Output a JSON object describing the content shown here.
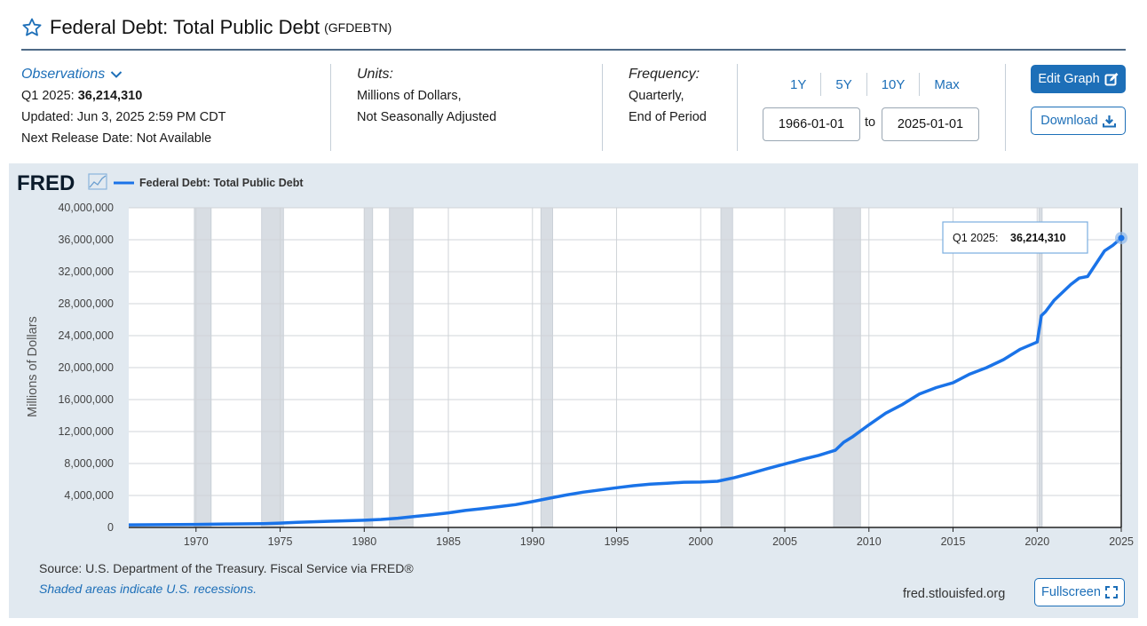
{
  "header": {
    "title": "Federal Debt: Total Public Debt",
    "series_id": "(GFDEBTN)"
  },
  "observations": {
    "link_label": "Observations",
    "latest_period": "Q1 2025:",
    "latest_value": "36,214,310",
    "updated": "Updated: Jun 3, 2025 2:59 PM CDT",
    "next_release": "Next Release Date: Not Available"
  },
  "units": {
    "label": "Units:",
    "line1": "Millions of Dollars,",
    "line2": "Not Seasonally Adjusted"
  },
  "frequency": {
    "label": "Frequency:",
    "line1": "Quarterly,",
    "line2": "End of Period"
  },
  "range": {
    "buttons": [
      "1Y",
      "5Y",
      "10Y",
      "Max"
    ],
    "start": "1966-01-01",
    "to_label": "to",
    "end": "2025-01-01"
  },
  "actions": {
    "edit_graph": "Edit Graph",
    "download": "Download",
    "fullscreen": "Fullscreen"
  },
  "footer": {
    "source": "Source: U.S. Department of the Treasury. Fiscal Service via FRED®",
    "shaded": "Shaded areas indicate U.S. recessions.",
    "site": "fred.stlouisfed.org"
  },
  "colors": {
    "accent": "#1d6fb8",
    "line": "#1a73e8",
    "panel": "#e1e9f0",
    "recession": "#d8dde3"
  },
  "chart_data": {
    "type": "line",
    "logo": "FRED",
    "legend": [
      "Federal Debt: Total Public Debt"
    ],
    "ylabel": "Millions of Dollars",
    "xlim": [
      1966,
      2025
    ],
    "ylim": [
      0,
      40000000
    ],
    "yticks": [
      0,
      4000000,
      8000000,
      12000000,
      16000000,
      20000000,
      24000000,
      28000000,
      32000000,
      36000000,
      40000000
    ],
    "ytick_labels": [
      "0",
      "4,000,000",
      "8,000,000",
      "12,000,000",
      "16,000,000",
      "20,000,000",
      "24,000,000",
      "28,000,000",
      "32,000,000",
      "36,000,000",
      "40,000,000"
    ],
    "xticks": [
      1970,
      1975,
      1980,
      1985,
      1990,
      1995,
      2000,
      2005,
      2010,
      2015,
      2020,
      2025
    ],
    "grid": true,
    "recessions": [
      [
        1969.9,
        1970.9
      ],
      [
        1973.9,
        1975.2
      ],
      [
        1980.0,
        1980.5
      ],
      [
        1981.5,
        1982.9
      ],
      [
        1990.5,
        1991.2
      ],
      [
        2001.2,
        2001.9
      ],
      [
        2007.9,
        2009.5
      ],
      [
        2020.1,
        2020.3
      ]
    ],
    "tooltip": {
      "label": "Q1 2025:",
      "value": "36,214,310"
    },
    "series": [
      {
        "name": "Federal Debt: Total Public Debt",
        "x": [
          1966,
          1968,
          1970,
          1972,
          1974,
          1975,
          1976,
          1978,
          1980,
          1981,
          1982,
          1983,
          1984,
          1985,
          1986,
          1987,
          1988,
          1989,
          1990,
          1991,
          1992,
          1993,
          1994,
          1995,
          1996,
          1997,
          1998,
          1999,
          2000,
          2001,
          2002,
          2003,
          2004,
          2005,
          2006,
          2007,
          2008,
          2008.5,
          2009,
          2010,
          2011,
          2012,
          2013,
          2014,
          2015,
          2016,
          2017,
          2018,
          2019,
          2020,
          2020.25,
          2020.5,
          2021,
          2022,
          2022.5,
          2023,
          2023.5,
          2024,
          2024.5,
          2025
        ],
        "y": [
          320000,
          350000,
          380000,
          430000,
          480000,
          540000,
          630000,
          780000,
          900000,
          1000000,
          1150000,
          1380000,
          1580000,
          1820000,
          2120000,
          2350000,
          2600000,
          2860000,
          3230000,
          3660000,
          4060000,
          4410000,
          4690000,
          4970000,
          5220000,
          5410000,
          5530000,
          5660000,
          5680000,
          5780000,
          6230000,
          6790000,
          7380000,
          7930000,
          8500000,
          9010000,
          9650000,
          10650000,
          11300000,
          12850000,
          14300000,
          15400000,
          16700000,
          17500000,
          18100000,
          19200000,
          20000000,
          21000000,
          22300000,
          23200000,
          26500000,
          27000000,
          28400000,
          30400000,
          31200000,
          31400000,
          33000000,
          34600000,
          35300000,
          36214310
        ]
      }
    ]
  }
}
